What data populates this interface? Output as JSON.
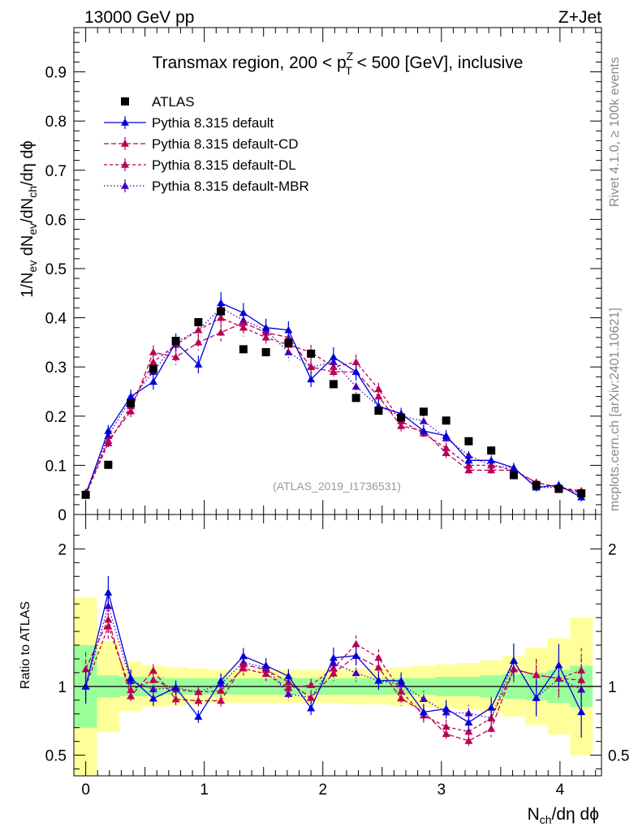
{
  "header": {
    "left": "13000 GeV pp",
    "right": "Z+Jet"
  },
  "side_labels": {
    "rivet": "Rivet 4.1.0, ≥ 100k events",
    "mcplots": "mcplots.cern.ch [arXiv:2401.10621]"
  },
  "chart_data": {
    "type": "line",
    "title": "Transmax region, 200 < p_T^Z < 500 [GeV], inclusive",
    "title_parts": {
      "pre": "Transmax region, 200 < p",
      "sup": "Z",
      "sub": "T",
      "post": " < 500 [GeV], inclusive"
    },
    "analysis_label": "(ATLAS_2019_I1736531)",
    "xlabel": "N_ch/dη dϕ",
    "ylabel": "1/N_ev dN_ev/dN_ch/dη dϕ",
    "ratio_ylabel": "Ratio to ATLAS",
    "xlim": [
      -0.1,
      4.35
    ],
    "ylim": [
      0,
      0.99
    ],
    "ratio_ylim": [
      0.35,
      2.25
    ],
    "x_ticks": [
      "0",
      "1",
      "2",
      "3",
      "4"
    ],
    "y_ticks": [
      "0",
      "0.1",
      "0.2",
      "0.3",
      "0.4",
      "0.5",
      "0.6",
      "0.7",
      "0.8",
      "0.9"
    ],
    "ratio_ticks": [
      "0.5",
      "1",
      "2"
    ],
    "x": [
      0.0,
      0.19,
      0.38,
      0.57,
      0.76,
      0.95,
      1.14,
      1.33,
      1.52,
      1.71,
      1.9,
      2.09,
      2.28,
      2.47,
      2.66,
      2.85,
      3.04,
      3.23,
      3.42,
      3.61,
      3.8,
      3.99,
      4.18
    ],
    "data": {
      "name": "ATLAS",
      "values": [
        0.04,
        0.101,
        0.226,
        0.296,
        0.353,
        0.391,
        0.413,
        0.336,
        0.33,
        0.349,
        0.327,
        0.265,
        0.237,
        0.211,
        0.197,
        0.209,
        0.191,
        0.149,
        0.13,
        0.08,
        0.06,
        0.052,
        0.043
      ],
      "band_inner": [
        0.3,
        0.08,
        0.07,
        0.07,
        0.06,
        0.06,
        0.06,
        0.06,
        0.06,
        0.06,
        0.06,
        0.06,
        0.06,
        0.06,
        0.06,
        0.06,
        0.07,
        0.07,
        0.08,
        0.09,
        0.1,
        0.12,
        0.15
      ],
      "band_outer": [
        0.65,
        0.33,
        0.18,
        0.15,
        0.14,
        0.13,
        0.12,
        0.12,
        0.12,
        0.12,
        0.12,
        0.12,
        0.13,
        0.13,
        0.14,
        0.15,
        0.16,
        0.17,
        0.19,
        0.22,
        0.28,
        0.35,
        0.5
      ]
    },
    "series": [
      {
        "name": "Pythia 8.315 default",
        "color": "#0000dd",
        "dash": "",
        "values": [
          0.04,
          0.17,
          0.24,
          0.27,
          0.35,
          0.305,
          0.43,
          0.41,
          0.38,
          0.375,
          0.275,
          0.32,
          0.29,
          0.22,
          0.205,
          0.17,
          0.16,
          0.11,
          0.11,
          0.095,
          0.055,
          0.06,
          0.035
        ],
        "errors": [
          0.005,
          0.012,
          0.014,
          0.016,
          0.018,
          0.018,
          0.022,
          0.02,
          0.018,
          0.018,
          0.016,
          0.02,
          0.016,
          0.014,
          0.012,
          0.012,
          0.012,
          0.01,
          0.01,
          0.01,
          0.008,
          0.008,
          0.008
        ]
      },
      {
        "name": "Pythia 8.315 default-CD",
        "color": "#bb0055",
        "dash": "6,3",
        "values": [
          0.045,
          0.15,
          0.21,
          0.33,
          0.32,
          0.35,
          0.37,
          0.39,
          0.37,
          0.36,
          0.3,
          0.29,
          0.29,
          0.24,
          0.18,
          0.17,
          0.125,
          0.09,
          0.09,
          0.09,
          0.065,
          0.055,
          0.045
        ],
        "errors": [
          0.005,
          0.01,
          0.012,
          0.014,
          0.016,
          0.016,
          0.018,
          0.018,
          0.017,
          0.016,
          0.015,
          0.015,
          0.015,
          0.013,
          0.011,
          0.011,
          0.01,
          0.008,
          0.008,
          0.008,
          0.007,
          0.007,
          0.007
        ]
      },
      {
        "name": "Pythia 8.315 default-DL",
        "color": "#bb0055",
        "dash": "4,3",
        "values": [
          0.04,
          0.145,
          0.22,
          0.31,
          0.345,
          0.375,
          0.4,
          0.38,
          0.36,
          0.345,
          0.33,
          0.3,
          0.31,
          0.255,
          0.19,
          0.165,
          0.135,
          0.1,
          0.1,
          0.09,
          0.065,
          0.055,
          0.048
        ],
        "errors": [
          0.005,
          0.01,
          0.012,
          0.014,
          0.016,
          0.016,
          0.018,
          0.018,
          0.017,
          0.016,
          0.015,
          0.015,
          0.015,
          0.013,
          0.011,
          0.011,
          0.01,
          0.008,
          0.008,
          0.008,
          0.007,
          0.007,
          0.007
        ]
      },
      {
        "name": "Pythia 8.315 default-MBR",
        "color": "#4400bb",
        "dash": "1.5,2.5",
        "values": [
          0.04,
          0.16,
          0.235,
          0.29,
          0.35,
          0.375,
          0.42,
          0.395,
          0.375,
          0.33,
          0.3,
          0.31,
          0.26,
          0.22,
          0.2,
          0.19,
          0.155,
          0.12,
          0.1,
          0.095,
          0.055,
          0.055,
          0.042
        ],
        "errors": [
          0.005,
          0.011,
          0.013,
          0.015,
          0.017,
          0.017,
          0.02,
          0.019,
          0.018,
          0.017,
          0.016,
          0.017,
          0.015,
          0.014,
          0.012,
          0.012,
          0.011,
          0.009,
          0.009,
          0.009,
          0.008,
          0.008,
          0.008
        ]
      }
    ],
    "legend_placement": "top-left"
  }
}
